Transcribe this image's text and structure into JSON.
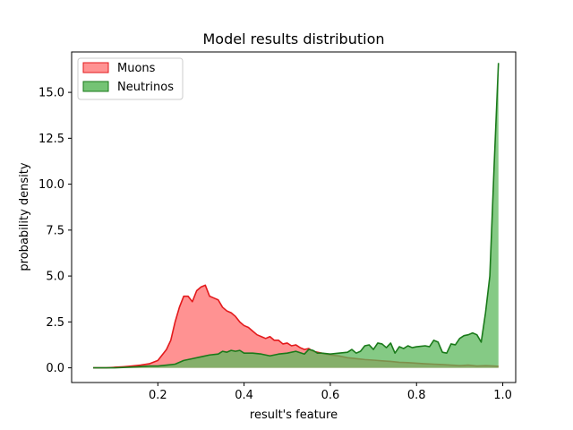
{
  "chart_data": {
    "type": "area",
    "title": "Model results distribution",
    "xlabel": "result's feature",
    "ylabel": "probability density",
    "xlim": [
      0.0,
      1.03
    ],
    "ylim": [
      -0.8,
      17.2
    ],
    "x_ticks": [
      {
        "value": 0.2,
        "label": "0.2"
      },
      {
        "value": 0.4,
        "label": "0.4"
      },
      {
        "value": 0.6,
        "label": "0.6"
      },
      {
        "value": 0.8,
        "label": "0.8"
      },
      {
        "value": 1.0,
        "label": "1.0"
      }
    ],
    "y_ticks": [
      {
        "value": 0.0,
        "label": "0.0"
      },
      {
        "value": 2.5,
        "label": "2.5"
      },
      {
        "value": 5.0,
        "label": "5.0"
      },
      {
        "value": 7.5,
        "label": "7.5"
      },
      {
        "value": 10.0,
        "label": "10.0"
      },
      {
        "value": 12.5,
        "label": "12.5"
      },
      {
        "value": 15.0,
        "label": "15.0"
      }
    ],
    "grid": false,
    "legend_position": "top-left",
    "series": [
      {
        "name": "Muons",
        "fill_color": "#ff7f7f",
        "line_color": "#e31a1c",
        "x": [
          0.05,
          0.08,
          0.1,
          0.12,
          0.14,
          0.16,
          0.18,
          0.2,
          0.21,
          0.22,
          0.23,
          0.24,
          0.25,
          0.26,
          0.27,
          0.28,
          0.29,
          0.3,
          0.31,
          0.32,
          0.33,
          0.34,
          0.35,
          0.36,
          0.37,
          0.38,
          0.39,
          0.4,
          0.41,
          0.42,
          0.43,
          0.44,
          0.45,
          0.46,
          0.47,
          0.48,
          0.49,
          0.5,
          0.51,
          0.52,
          0.53,
          0.54,
          0.55,
          0.56,
          0.57,
          0.58,
          0.59,
          0.6,
          0.62,
          0.64,
          0.66,
          0.68,
          0.7,
          0.72,
          0.74,
          0.76,
          0.78,
          0.8,
          0.82,
          0.84,
          0.86,
          0.88,
          0.9,
          0.92,
          0.94,
          0.96,
          0.98,
          0.99
        ],
        "y": [
          0.0,
          0.0,
          0.03,
          0.06,
          0.1,
          0.15,
          0.22,
          0.4,
          0.7,
          1.0,
          1.5,
          2.5,
          3.3,
          3.9,
          3.9,
          3.6,
          4.2,
          4.4,
          4.5,
          3.9,
          3.8,
          3.7,
          3.3,
          3.1,
          3.0,
          2.8,
          2.5,
          2.3,
          2.2,
          2.0,
          1.8,
          1.7,
          1.6,
          1.7,
          1.5,
          1.5,
          1.3,
          1.35,
          1.2,
          1.25,
          1.1,
          1.0,
          1.05,
          0.9,
          0.85,
          0.8,
          0.75,
          0.7,
          0.65,
          0.55,
          0.5,
          0.45,
          0.42,
          0.38,
          0.35,
          0.3,
          0.28,
          0.25,
          0.22,
          0.2,
          0.18,
          0.15,
          0.12,
          0.15,
          0.1,
          0.12,
          0.1,
          0.08
        ]
      },
      {
        "name": "Neutrinos",
        "fill_color": "#5cb85c",
        "line_color": "#1a7a1a",
        "x": [
          0.05,
          0.1,
          0.15,
          0.18,
          0.2,
          0.22,
          0.24,
          0.26,
          0.28,
          0.3,
          0.32,
          0.34,
          0.35,
          0.36,
          0.37,
          0.38,
          0.39,
          0.4,
          0.42,
          0.44,
          0.46,
          0.48,
          0.5,
          0.52,
          0.54,
          0.55,
          0.56,
          0.57,
          0.58,
          0.6,
          0.62,
          0.64,
          0.65,
          0.66,
          0.67,
          0.68,
          0.69,
          0.7,
          0.71,
          0.72,
          0.73,
          0.74,
          0.75,
          0.76,
          0.77,
          0.78,
          0.79,
          0.8,
          0.82,
          0.83,
          0.84,
          0.85,
          0.86,
          0.87,
          0.88,
          0.89,
          0.9,
          0.91,
          0.92,
          0.93,
          0.94,
          0.95,
          0.96,
          0.97,
          0.98,
          0.99
        ],
        "y": [
          0.0,
          0.0,
          0.05,
          0.1,
          0.1,
          0.15,
          0.2,
          0.4,
          0.5,
          0.6,
          0.7,
          0.75,
          0.9,
          0.85,
          0.95,
          0.9,
          0.95,
          0.8,
          0.8,
          0.75,
          0.65,
          0.75,
          0.8,
          0.9,
          0.75,
          1.0,
          0.95,
          0.8,
          0.8,
          0.75,
          0.8,
          0.85,
          1.0,
          0.8,
          0.9,
          1.2,
          1.25,
          1.0,
          1.35,
          1.3,
          1.1,
          1.35,
          0.8,
          1.15,
          1.05,
          1.2,
          1.1,
          1.15,
          1.2,
          1.15,
          1.5,
          1.4,
          0.85,
          0.8,
          1.3,
          1.25,
          1.6,
          1.75,
          1.8,
          1.9,
          1.8,
          1.4,
          3.0,
          5.0,
          11.0,
          16.6
        ]
      }
    ]
  }
}
